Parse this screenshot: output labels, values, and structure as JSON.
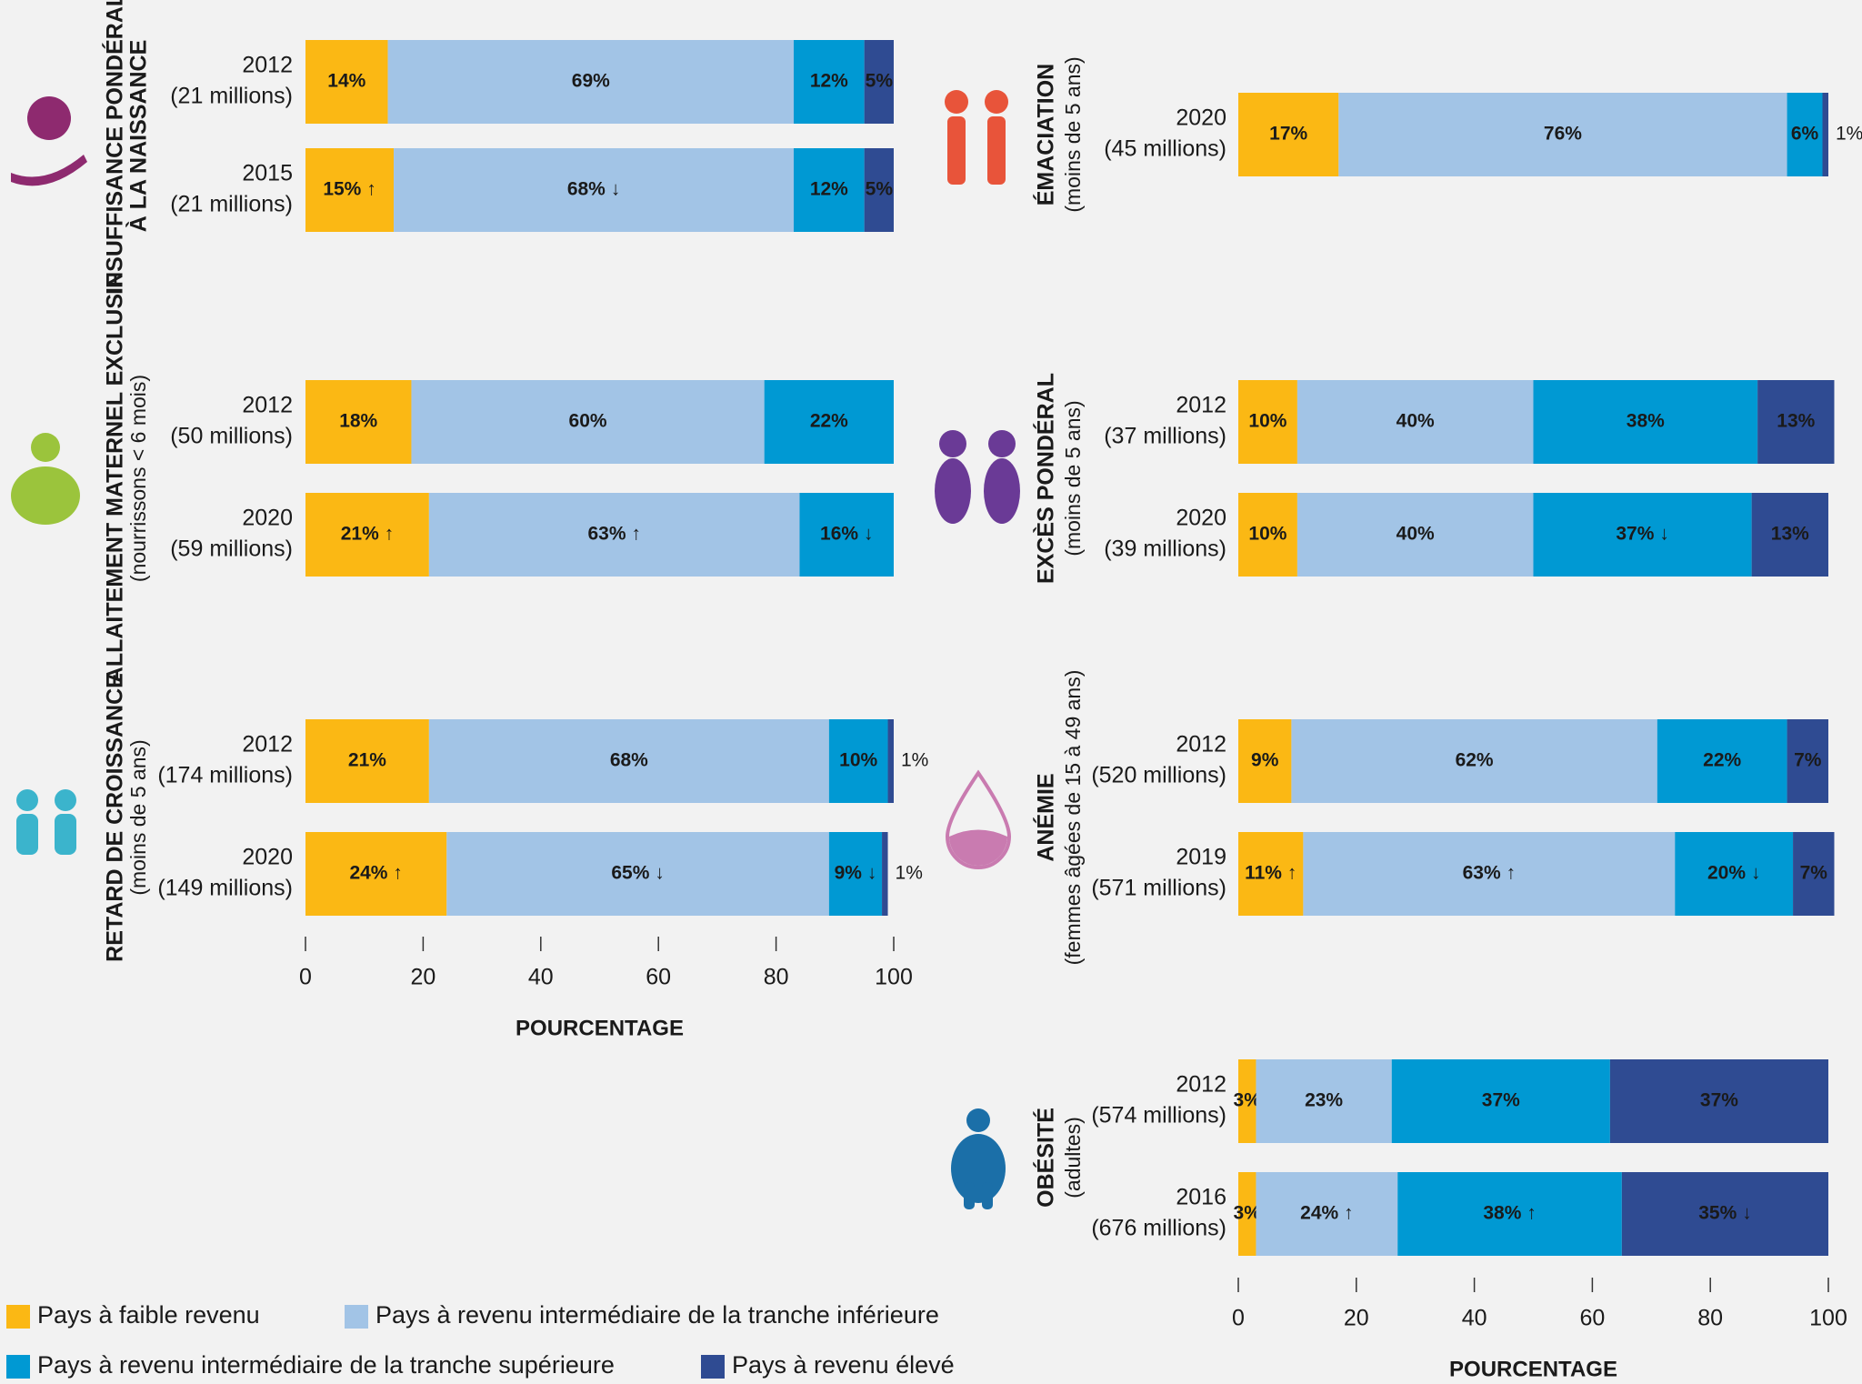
{
  "legend": [
    {
      "name": "Pays à faible revenu",
      "color": "#fbb814"
    },
    {
      "name": "Pays à revenu intermédiaire de la tranche inférieure",
      "color": "#a2c4e6"
    },
    {
      "name": "Pays à revenu intermédiaire de la tranche supérieure",
      "color": "#0099d3"
    },
    {
      "name": "Pays à revenu élevé",
      "color": "#2f4b92"
    }
  ],
  "chart_data": [
    {
      "type": "bar",
      "orientation": "horizontal",
      "stacked": true,
      "title": [
        "INSUFFISANCE PONDÉRALE",
        "À LA NAISSANCE"
      ],
      "categories": [
        "2012",
        "2015"
      ],
      "category_notes": [
        "(21 millions)",
        "(21 millions)"
      ],
      "xlim": [
        0,
        100
      ],
      "series": [
        {
          "values": [
            14,
            15
          ],
          "value_labels": [
            "14%",
            "15% ↑"
          ]
        },
        {
          "values": [
            69,
            68
          ],
          "value_labels": [
            "69%",
            "68% ↓"
          ]
        },
        {
          "values": [
            12,
            12
          ],
          "value_labels": [
            "12%",
            "12%"
          ]
        },
        {
          "values": [
            5,
            5
          ],
          "value_labels": [
            "5%",
            "5%"
          ]
        }
      ]
    },
    {
      "type": "bar",
      "orientation": "horizontal",
      "stacked": true,
      "title": [
        "ALLAITEMENT MATERNEL EXCLUSIF"
      ],
      "subtitle": "(nourrissons < 6 mois)",
      "categories": [
        "2012",
        "2020"
      ],
      "category_notes": [
        "(50 millions)",
        "(59 millions)"
      ],
      "xlim": [
        0,
        100
      ],
      "series": [
        {
          "values": [
            18,
            21
          ],
          "value_labels": [
            "18%",
            "21% ↑"
          ]
        },
        {
          "values": [
            60,
            63
          ],
          "value_labels": [
            "60%",
            "63% ↑"
          ]
        },
        {
          "values": [
            22,
            16
          ],
          "value_labels": [
            "22%",
            "16% ↓"
          ]
        },
        {
          "values": [
            null,
            null
          ],
          "value_labels": [
            null,
            null
          ]
        }
      ]
    },
    {
      "type": "bar",
      "orientation": "horizontal",
      "stacked": true,
      "title": [
        "RETARD DE CROISSANCE"
      ],
      "subtitle": "(moins de 5 ans)",
      "categories": [
        "2012",
        "2020"
      ],
      "category_notes": [
        "(174 millions)",
        "(149 millions)"
      ],
      "xlim": [
        0,
        100
      ],
      "xticks": [
        0,
        20,
        40,
        60,
        80,
        100
      ],
      "xlabel": "POURCENTAGE",
      "series": [
        {
          "values": [
            21,
            24
          ],
          "value_labels": [
            "21%",
            "24% ↑"
          ]
        },
        {
          "values": [
            68,
            65
          ],
          "value_labels": [
            "68%",
            "65% ↓"
          ]
        },
        {
          "values": [
            10,
            9
          ],
          "value_labels": [
            "10%",
            "9% ↓"
          ]
        },
        {
          "values": [
            1,
            1
          ],
          "value_labels": [
            "1%",
            "1%"
          ]
        }
      ]
    },
    {
      "type": "bar",
      "orientation": "horizontal",
      "stacked": true,
      "title": [
        "ÉMACIATION"
      ],
      "subtitle": "(moins de 5 ans)",
      "categories": [
        "2020"
      ],
      "category_notes": [
        "(45 millions)"
      ],
      "xlim": [
        0,
        100
      ],
      "series": [
        {
          "values": [
            17
          ],
          "value_labels": [
            "17%"
          ]
        },
        {
          "values": [
            76
          ],
          "value_labels": [
            "76%"
          ]
        },
        {
          "values": [
            6
          ],
          "value_labels": [
            "6%"
          ]
        },
        {
          "values": [
            1
          ],
          "value_labels": [
            "1%"
          ]
        }
      ]
    },
    {
      "type": "bar",
      "orientation": "horizontal",
      "stacked": true,
      "title": [
        "EXCÈS PONDÉRAL"
      ],
      "subtitle": "(moins de 5 ans)",
      "categories": [
        "2012",
        "2020"
      ],
      "category_notes": [
        "(37 millions)",
        "(39 millions)"
      ],
      "xlim": [
        0,
        100
      ],
      "series": [
        {
          "values": [
            10,
            10
          ],
          "value_labels": [
            "10%",
            "10%"
          ]
        },
        {
          "values": [
            40,
            40
          ],
          "value_labels": [
            "40%",
            "40%"
          ]
        },
        {
          "values": [
            38,
            37
          ],
          "value_labels": [
            "38%",
            "37% ↓"
          ]
        },
        {
          "values": [
            13,
            13
          ],
          "value_labels": [
            "13%",
            "13%"
          ]
        }
      ]
    },
    {
      "type": "bar",
      "orientation": "horizontal",
      "stacked": true,
      "title": [
        "ANÉMIE"
      ],
      "subtitle": "(femmes âgées de 15 à 49 ans)",
      "categories": [
        "2012",
        "2019"
      ],
      "category_notes": [
        "(520 millions)",
        "(571 millions)"
      ],
      "xlim": [
        0,
        100
      ],
      "series": [
        {
          "values": [
            9,
            11
          ],
          "value_labels": [
            "9%",
            "11% ↑"
          ]
        },
        {
          "values": [
            62,
            63
          ],
          "value_labels": [
            "62%",
            "63% ↑"
          ]
        },
        {
          "values": [
            22,
            20
          ],
          "value_labels": [
            "22%",
            "20% ↓"
          ]
        },
        {
          "values": [
            7,
            7
          ],
          "value_labels": [
            "7%",
            "7%"
          ]
        }
      ]
    },
    {
      "type": "bar",
      "orientation": "horizontal",
      "stacked": true,
      "title": [
        "OBÉSITÉ"
      ],
      "subtitle": "(adultes)",
      "categories": [
        "2012",
        "2016"
      ],
      "category_notes": [
        "(574 millions)",
        "(676 millions)"
      ],
      "xlim": [
        0,
        100
      ],
      "xticks": [
        0,
        20,
        40,
        60,
        80,
        100
      ],
      "xlabel": "POURCENTAGE",
      "series": [
        {
          "values": [
            3,
            3
          ],
          "value_labels": [
            "3%",
            "3%"
          ]
        },
        {
          "values": [
            23,
            24
          ],
          "value_labels": [
            "23%",
            "24% ↑"
          ]
        },
        {
          "values": [
            37,
            38
          ],
          "value_labels": [
            "37%",
            "38% ↑"
          ]
        },
        {
          "values": [
            37,
            35
          ],
          "value_labels": [
            "37%",
            "35% ↓"
          ]
        }
      ]
    }
  ]
}
